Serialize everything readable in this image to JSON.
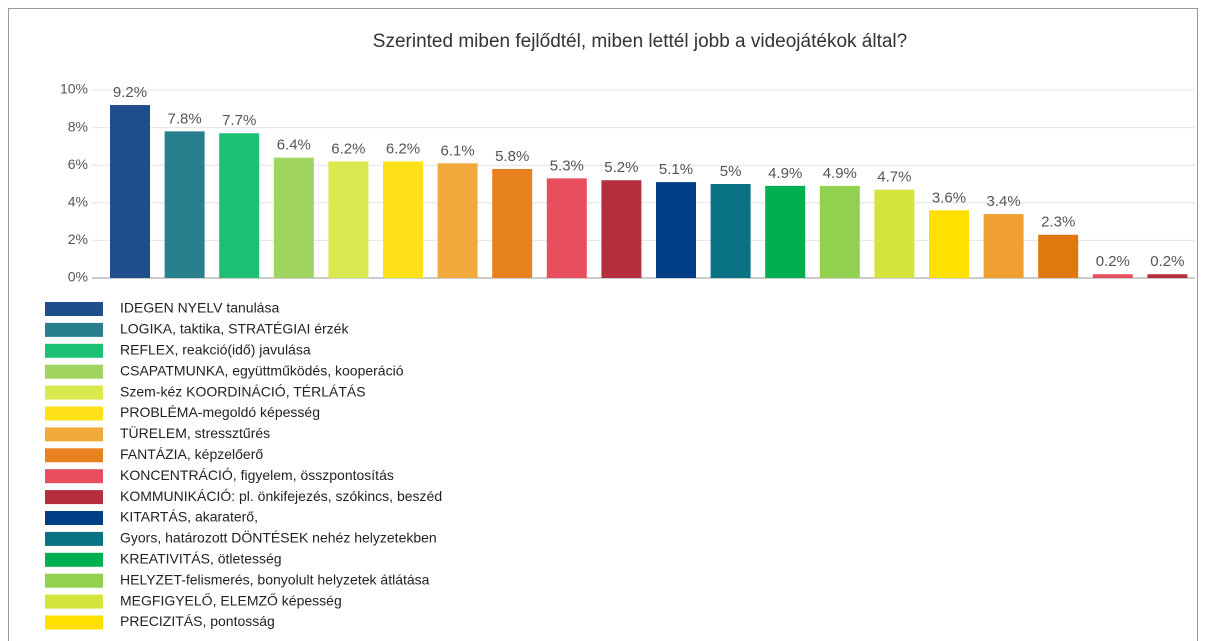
{
  "chart_data": {
    "type": "bar",
    "title": "Szerinted miben fejlődtél, miben lettél jobb a videojátékok által?",
    "categories": [
      "IDEGEN NYELV tanulása",
      "LOGIKA, taktika, STRATÉGIAI érzék",
      "REFLEX, reakció(idő) javulása",
      "CSAPATMUNKA, együttműködés, kooperáció",
      "Szem-kéz KOORDINÁCIÓ, TÉRLÁTÁS",
      "PROBLÉMA-megoldó képesség",
      "TÜRELEM, stressztűrés",
      "FANTÁZIA, képzelőerő",
      "KONCENTRÁCIÓ, figyelem, összpontosítás",
      "KOMMUNIKÁCIÓ: pl. önkifejezés, szókincs, beszéd",
      "KITARTÁS, akaraterő,",
      "Gyors, határozott DÖNTÉSEK nehéz helyzetekben",
      "KREATIVITÁS, ötletesség",
      "HELYZET-felismerés, bonyolult helyzetek átlátása",
      "MEGFIGYELŐ, ELEMZŐ képesség",
      "PRECIZITÁS, pontosság",
      null,
      null,
      null,
      null
    ],
    "values": [
      9.2,
      7.8,
      7.7,
      6.4,
      6.2,
      6.2,
      6.1,
      5.8,
      5.3,
      5.2,
      5.1,
      5,
      4.9,
      4.9,
      4.7,
      3.6,
      3.4,
      2.3,
      0.2,
      0.2
    ],
    "value_labels": [
      "9.2%",
      "7.8%",
      "7.7%",
      "6.4%",
      "6.2%",
      "6.2%",
      "6.1%",
      "5.8%",
      "5.3%",
      "5.2%",
      "5.1%",
      "5%",
      "4.9%",
      "4.9%",
      "4.7%",
      "3.6%",
      "3.4%",
      "2.3%",
      "0.2%",
      "0.2%"
    ],
    "colors": [
      "#1f4e8c",
      "#2a7f8f",
      "#1dbf73",
      "#9ed45f",
      "#d9e84f",
      "#ffe21a",
      "#f2a93b",
      "#e8821e",
      "#e84f5e",
      "#b52e3e",
      "#003f87",
      "#0a7285",
      "#00b050",
      "#92d050",
      "#d4e43d",
      "#ffe000",
      "#f0a030",
      "#e07810",
      "#e84f5e",
      "#b52e3e"
    ],
    "ylim": [
      0,
      10
    ],
    "yticks": [
      {
        "value": 0,
        "label": "0%"
      },
      {
        "value": 2,
        "label": "2%"
      },
      {
        "value": 4,
        "label": "4%"
      },
      {
        "value": 6,
        "label": "6%"
      },
      {
        "value": 8,
        "label": "8%"
      },
      {
        "value": 10,
        "label": "10%"
      }
    ],
    "grid": true,
    "legend": "bottom"
  }
}
